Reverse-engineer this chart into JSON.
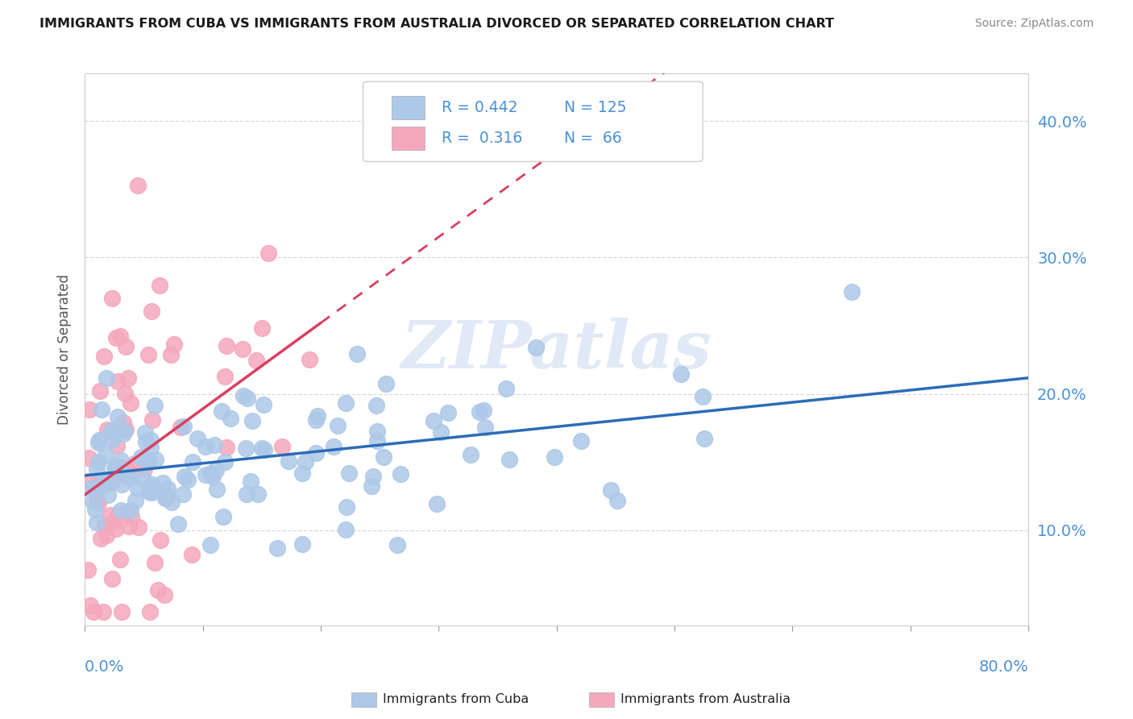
{
  "title": "IMMIGRANTS FROM CUBA VS IMMIGRANTS FROM AUSTRALIA DIVORCED OR SEPARATED CORRELATION CHART",
  "source": "Source: ZipAtlas.com",
  "ylabel": "Divorced or Separated",
  "ytick_values": [
    0.1,
    0.2,
    0.3,
    0.4
  ],
  "xlim": [
    0.0,
    0.8
  ],
  "ylim": [
    0.03,
    0.435
  ],
  "legend_r_cuba": "0.442",
  "legend_n_cuba": "125",
  "legend_r_aus": "0.316",
  "legend_n_aus": "66",
  "cuba_color": "#adc8e8",
  "aus_color": "#f4a8bc",
  "cuba_line_color": "#2b6cb8",
  "aus_line_color": "#d94060",
  "watermark_text": "ZIPatlas",
  "background_color": "#ffffff",
  "title_color": "#1a1a1a",
  "axis_label_color": "#4a90d9",
  "grid_color": "#d8d8d8",
  "legend_box_color": "#eeeeee"
}
